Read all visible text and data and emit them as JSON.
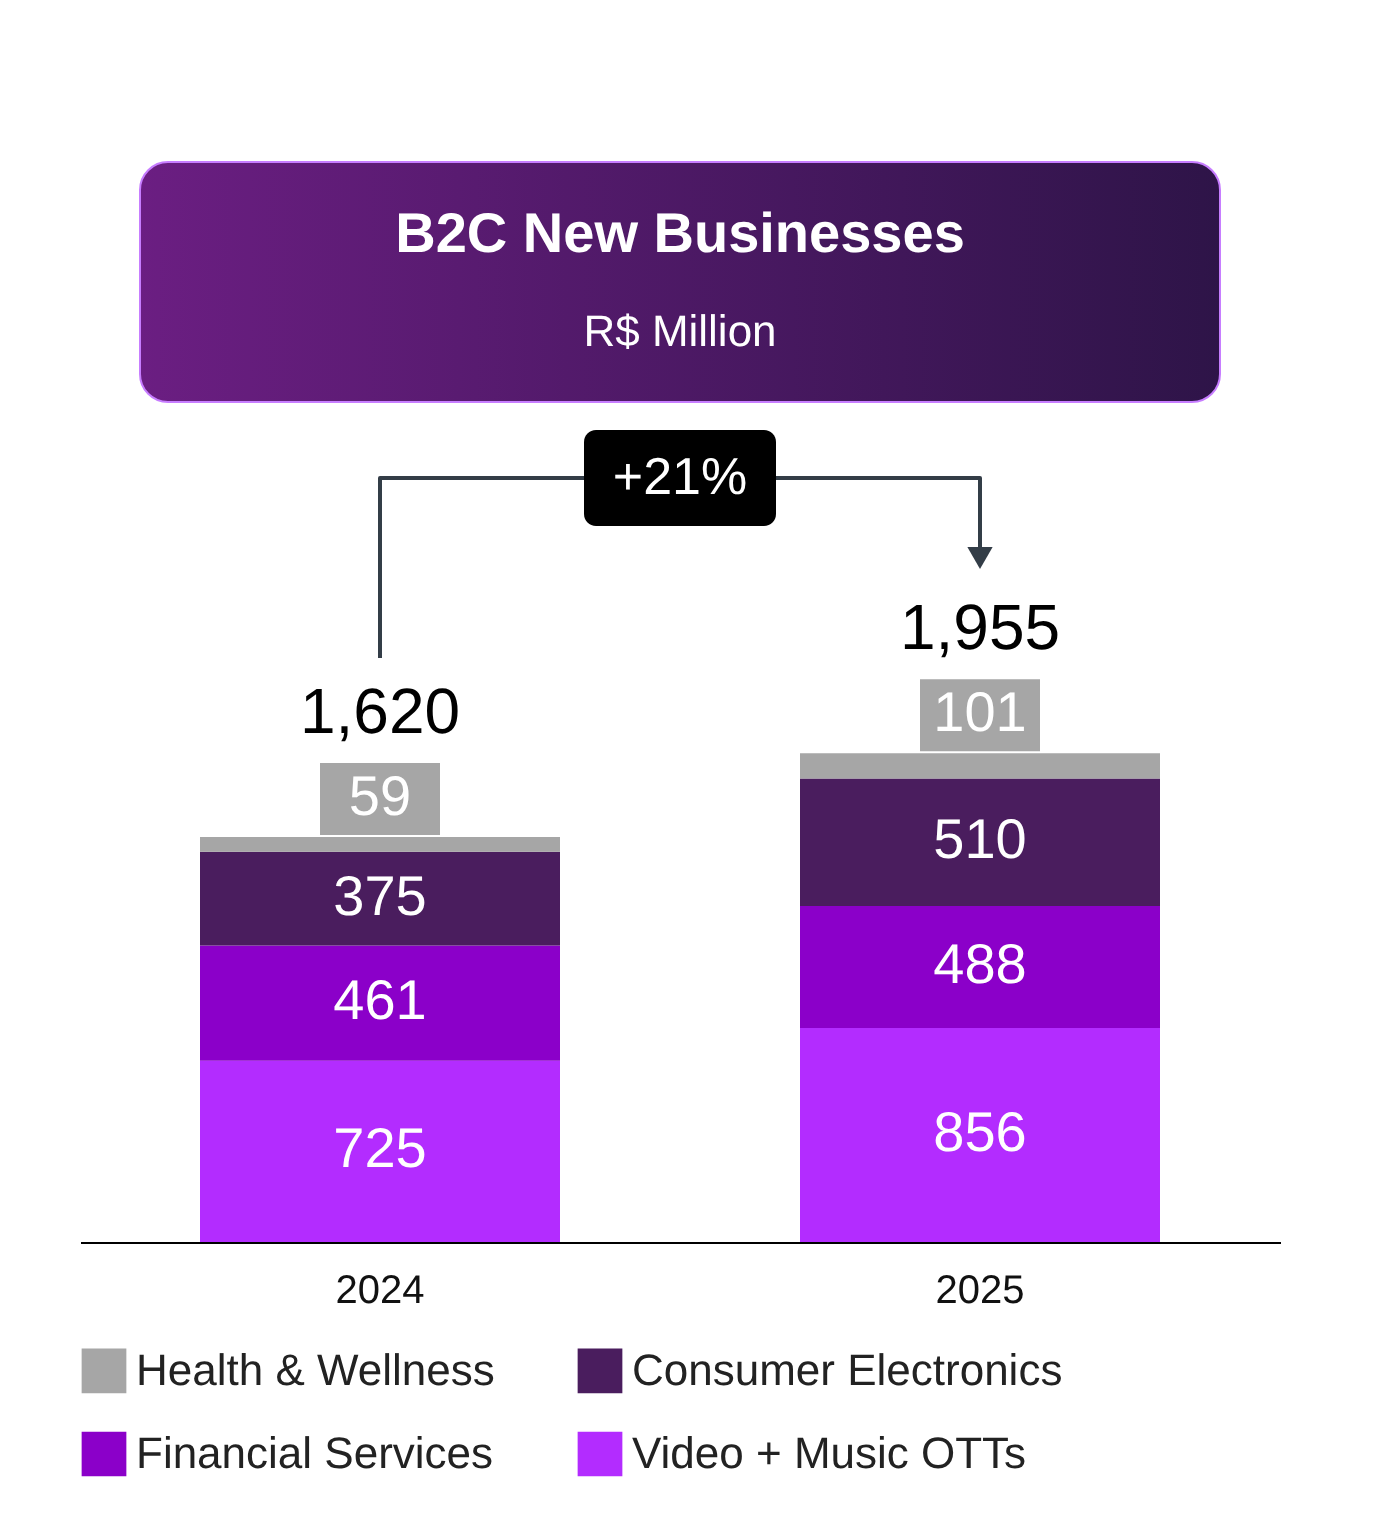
{
  "chart_data": {
    "type": "bar",
    "title": "B2C New Businesses",
    "subtitle": "R$ Million",
    "categories": [
      "2024",
      "2025"
    ],
    "stacked": true,
    "data_labels": true,
    "legend": "bottom",
    "series": [
      {
        "name": "Video + Music OTTs",
        "color": "#b32cff",
        "values": [
          725,
          856
        ]
      },
      {
        "name": "Financial Services",
        "color": "#8b00c9",
        "values": [
          461,
          488
        ]
      },
      {
        "name": "Consumer Electronics",
        "color": "#4a1d5e",
        "values": [
          375,
          510
        ]
      },
      {
        "name": "Health & Wellness",
        "color": "#a6a6a6",
        "values": [
          59,
          101
        ]
      }
    ],
    "totals": [
      "1,620",
      "1,955"
    ],
    "annotations": [
      "+21%"
    ]
  }
}
